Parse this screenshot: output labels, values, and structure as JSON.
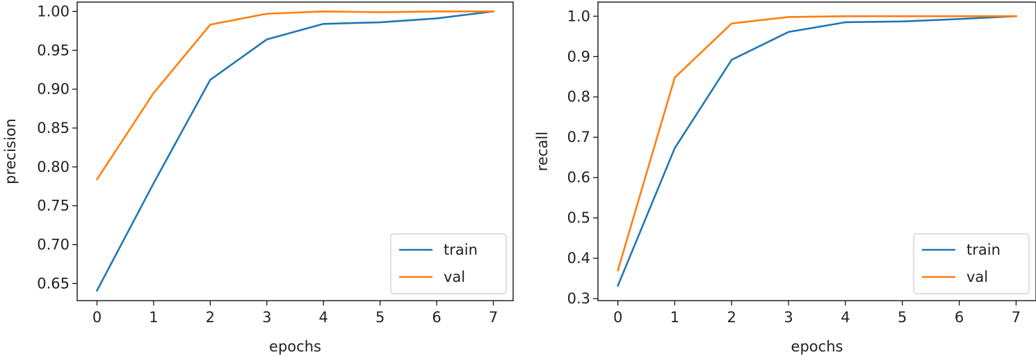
{
  "chart_data": [
    {
      "type": "line",
      "title": "",
      "xlabel": "epochs",
      "ylabel": "precision",
      "x": [
        0,
        1,
        2,
        3,
        4,
        5,
        6,
        7
      ],
      "xlim": [
        -0.35,
        7.35
      ],
      "ylim": [
        0.628,
        1.012
      ],
      "xticks": [
        0,
        1,
        2,
        3,
        4,
        5,
        6,
        7
      ],
      "xtick_labels": [
        "0",
        "1",
        "2",
        "3",
        "4",
        "5",
        "6",
        "7"
      ],
      "yticks": [
        0.65,
        0.7,
        0.75,
        0.8,
        0.85,
        0.9,
        0.95,
        1.0
      ],
      "ytick_labels": [
        "0.65",
        "0.70",
        "0.75",
        "0.80",
        "0.85",
        "0.90",
        "0.95",
        "1.00"
      ],
      "grid": false,
      "legend_position": "lower-right",
      "series": [
        {
          "name": "train",
          "color": "#1f77b4",
          "values": [
            0.641,
            0.779,
            0.912,
            0.964,
            0.984,
            0.986,
            0.991,
            1.0
          ]
        },
        {
          "name": "val",
          "color": "#ff7f0e",
          "values": [
            0.784,
            0.895,
            0.983,
            0.997,
            1.0,
            0.999,
            1.0,
            1.0
          ]
        }
      ]
    },
    {
      "type": "line",
      "title": "",
      "xlabel": "epochs",
      "ylabel": "recall",
      "x": [
        0,
        1,
        2,
        3,
        4,
        5,
        6,
        7
      ],
      "xlim": [
        -0.35,
        7.35
      ],
      "ylim": [
        0.295,
        1.035
      ],
      "xticks": [
        0,
        1,
        2,
        3,
        4,
        5,
        6,
        7
      ],
      "xtick_labels": [
        "0",
        "1",
        "2",
        "3",
        "4",
        "5",
        "6",
        "7"
      ],
      "yticks": [
        0.3,
        0.4,
        0.5,
        0.6,
        0.7,
        0.8,
        0.9,
        1.0
      ],
      "ytick_labels": [
        "0.3",
        "0.4",
        "0.5",
        "0.6",
        "0.7",
        "0.8",
        "0.9",
        "1.0"
      ],
      "grid": false,
      "legend_position": "lower-right",
      "series": [
        {
          "name": "train",
          "color": "#1f77b4",
          "values": [
            0.332,
            0.673,
            0.892,
            0.961,
            0.985,
            0.987,
            0.993,
            1.0
          ]
        },
        {
          "name": "val",
          "color": "#ff7f0e",
          "values": [
            0.37,
            0.848,
            0.982,
            0.998,
            1.0,
            1.0,
            1.0,
            1.0
          ]
        }
      ]
    }
  ]
}
